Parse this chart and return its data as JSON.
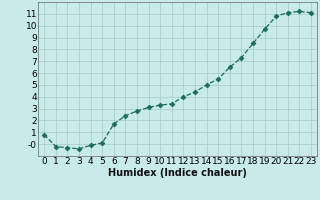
{
  "x": [
    0,
    1,
    2,
    3,
    4,
    5,
    6,
    7,
    8,
    9,
    10,
    11,
    12,
    13,
    14,
    15,
    16,
    17,
    18,
    19,
    20,
    21,
    22,
    23
  ],
  "y": [
    0.8,
    -0.2,
    -0.3,
    -0.4,
    -0.1,
    0.1,
    1.7,
    2.4,
    2.8,
    3.1,
    3.3,
    3.4,
    4.0,
    4.4,
    5.0,
    5.5,
    6.5,
    7.3,
    8.5,
    9.7,
    10.8,
    11.1,
    11.2,
    11.1
  ],
  "line_color": "#1a6b5a",
  "marker": "D",
  "marker_size": 2.5,
  "bg_color": "#c8eae8",
  "grid_color": "#aacfcc",
  "xlabel": "Humidex (Indice chaleur)",
  "xlabel_fontsize": 7,
  "tick_fontsize": 6.5,
  "ylim": [
    -1,
    12
  ],
  "xlim": [
    -0.5,
    23.5
  ],
  "yticks": [
    0,
    1,
    2,
    3,
    4,
    5,
    6,
    7,
    8,
    9,
    10,
    11
  ],
  "xticks": [
    0,
    1,
    2,
    3,
    4,
    5,
    6,
    7,
    8,
    9,
    10,
    11,
    12,
    13,
    14,
    15,
    16,
    17,
    18,
    19,
    20,
    21,
    22,
    23
  ]
}
